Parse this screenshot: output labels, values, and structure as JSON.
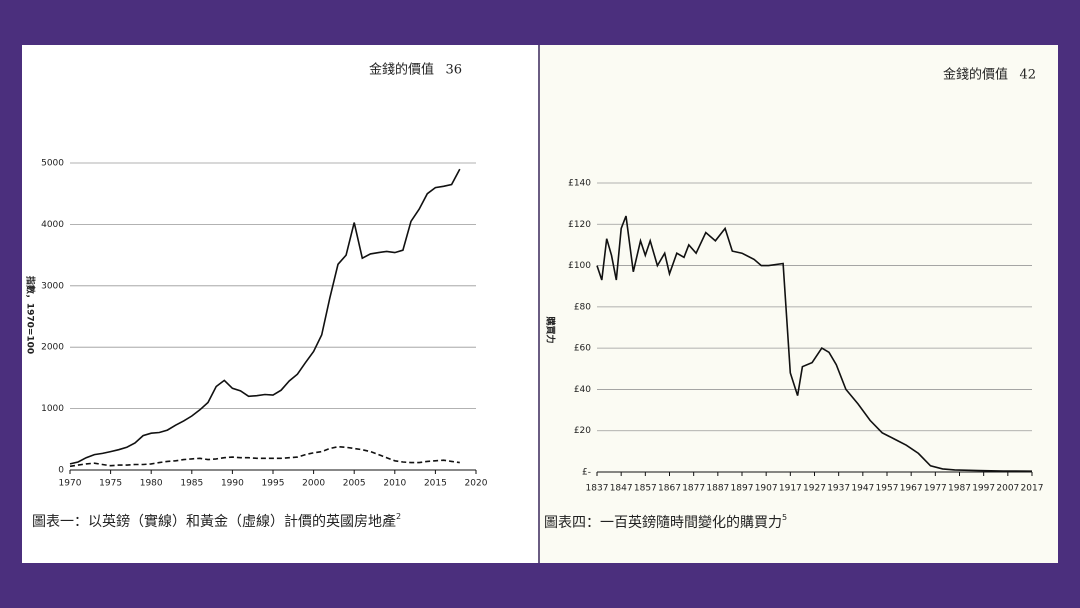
{
  "chart_data": [
    {
      "type": "line",
      "running_head": "金錢的價值",
      "page": 36,
      "title": "圖表一：以英鎊（實線）和黃金（虛線）計價的英國房地產",
      "footnote": "2",
      "ylabel": "指數，1970=100",
      "x": [
        1970,
        1971,
        1972,
        1973,
        1974,
        1975,
        1976,
        1977,
        1978,
        1979,
        1980,
        1981,
        1982,
        1983,
        1984,
        1985,
        1986,
        1987,
        1988,
        1989,
        1990,
        1991,
        1992,
        1993,
        1994,
        1995,
        1996,
        1997,
        1998,
        1999,
        2000,
        2001,
        2002,
        2003,
        2004,
        2005,
        2006,
        2007,
        2008,
        2009,
        2010,
        2011,
        2012,
        2013,
        2014,
        2015,
        2016,
        2017,
        2018
      ],
      "series": [
        {
          "color": "#111111",
          "dash": false,
          "values": [
            100,
            130,
            200,
            250,
            270,
            300,
            330,
            370,
            440,
            560,
            600,
            610,
            650,
            730,
            800,
            880,
            980,
            1100,
            1360,
            1460,
            1330,
            1290,
            1200,
            1210,
            1230,
            1220,
            1300,
            1450,
            1560,
            1750,
            1930,
            2200,
            2800,
            3350,
            3500,
            4030,
            3450,
            3520,
            3540,
            3560,
            3540,
            3580,
            4050,
            4250,
            4500,
            4600,
            4620,
            4650,
            4900
          ]
        },
        {
          "color": "#111111",
          "dash": true,
          "values": [
            60,
            80,
            100,
            110,
            90,
            70,
            80,
            80,
            90,
            90,
            100,
            120,
            140,
            150,
            170,
            180,
            190,
            170,
            180,
            200,
            210,
            200,
            200,
            190,
            190,
            190,
            190,
            200,
            210,
            250,
            280,
            300,
            350,
            380,
            370,
            350,
            330,
            300,
            250,
            200,
            150,
            130,
            120,
            120,
            140,
            150,
            160,
            140,
            120
          ]
        }
      ],
      "xlim": [
        1970,
        2020
      ],
      "xticks": [
        1970,
        1975,
        1980,
        1985,
        1990,
        1995,
        2000,
        2005,
        2010,
        2015,
        2020
      ],
      "ylim": [
        0,
        5000
      ],
      "yticks": [
        0,
        1000,
        2000,
        3000,
        4000,
        5000
      ],
      "grid": true
    },
    {
      "type": "line",
      "running_head": "金錢的價值",
      "page": 42,
      "title": "圖表四：一百英鎊隨時間變化的購買力",
      "footnote": "5",
      "ylabel": "購買力",
      "x": [
        1837,
        1839,
        1841,
        1843,
        1845,
        1847,
        1849,
        1852,
        1855,
        1857,
        1859,
        1862,
        1865,
        1867,
        1870,
        1873,
        1875,
        1878,
        1882,
        1886,
        1890,
        1893,
        1897,
        1902,
        1905,
        1908,
        1914,
        1917,
        1920,
        1922,
        1926,
        1930,
        1933,
        1936,
        1940,
        1945,
        1950,
        1955,
        1960,
        1965,
        1970,
        1975,
        1980,
        1985,
        1995,
        2005,
        2017
      ],
      "series": [
        {
          "color": "#111111",
          "dash": false,
          "values": [
            100,
            93,
            113,
            105,
            93,
            118,
            124,
            97,
            112,
            105,
            112,
            100,
            106,
            96,
            106,
            104,
            110,
            106,
            116,
            112,
            118,
            107,
            106,
            103,
            100,
            100,
            101,
            48,
            37,
            51,
            53,
            60,
            58,
            52,
            40,
            33,
            25,
            19,
            16,
            13,
            9,
            3,
            1.5,
            1,
            0.7,
            0.5,
            0.4
          ]
        }
      ],
      "xlim": [
        1837,
        2017
      ],
      "xticks": [
        1837,
        1847,
        1857,
        1867,
        1877,
        1887,
        1897,
        1907,
        1917,
        1927,
        1937,
        1947,
        1957,
        1967,
        1977,
        1987,
        1997,
        2007,
        2017
      ],
      "ylim": [
        0,
        140
      ],
      "yticks": [
        {
          "value": 0,
          "label": "£-"
        },
        {
          "value": 20,
          "label": "£20"
        },
        {
          "value": 40,
          "label": "£40"
        },
        {
          "value": 60,
          "label": "£60"
        },
        {
          "value": 80,
          "label": "£80"
        },
        {
          "value": 100,
          "label": "£100"
        },
        {
          "value": 120,
          "label": "£120"
        },
        {
          "value": 140,
          "label": "£140"
        }
      ],
      "grid": true
    }
  ]
}
